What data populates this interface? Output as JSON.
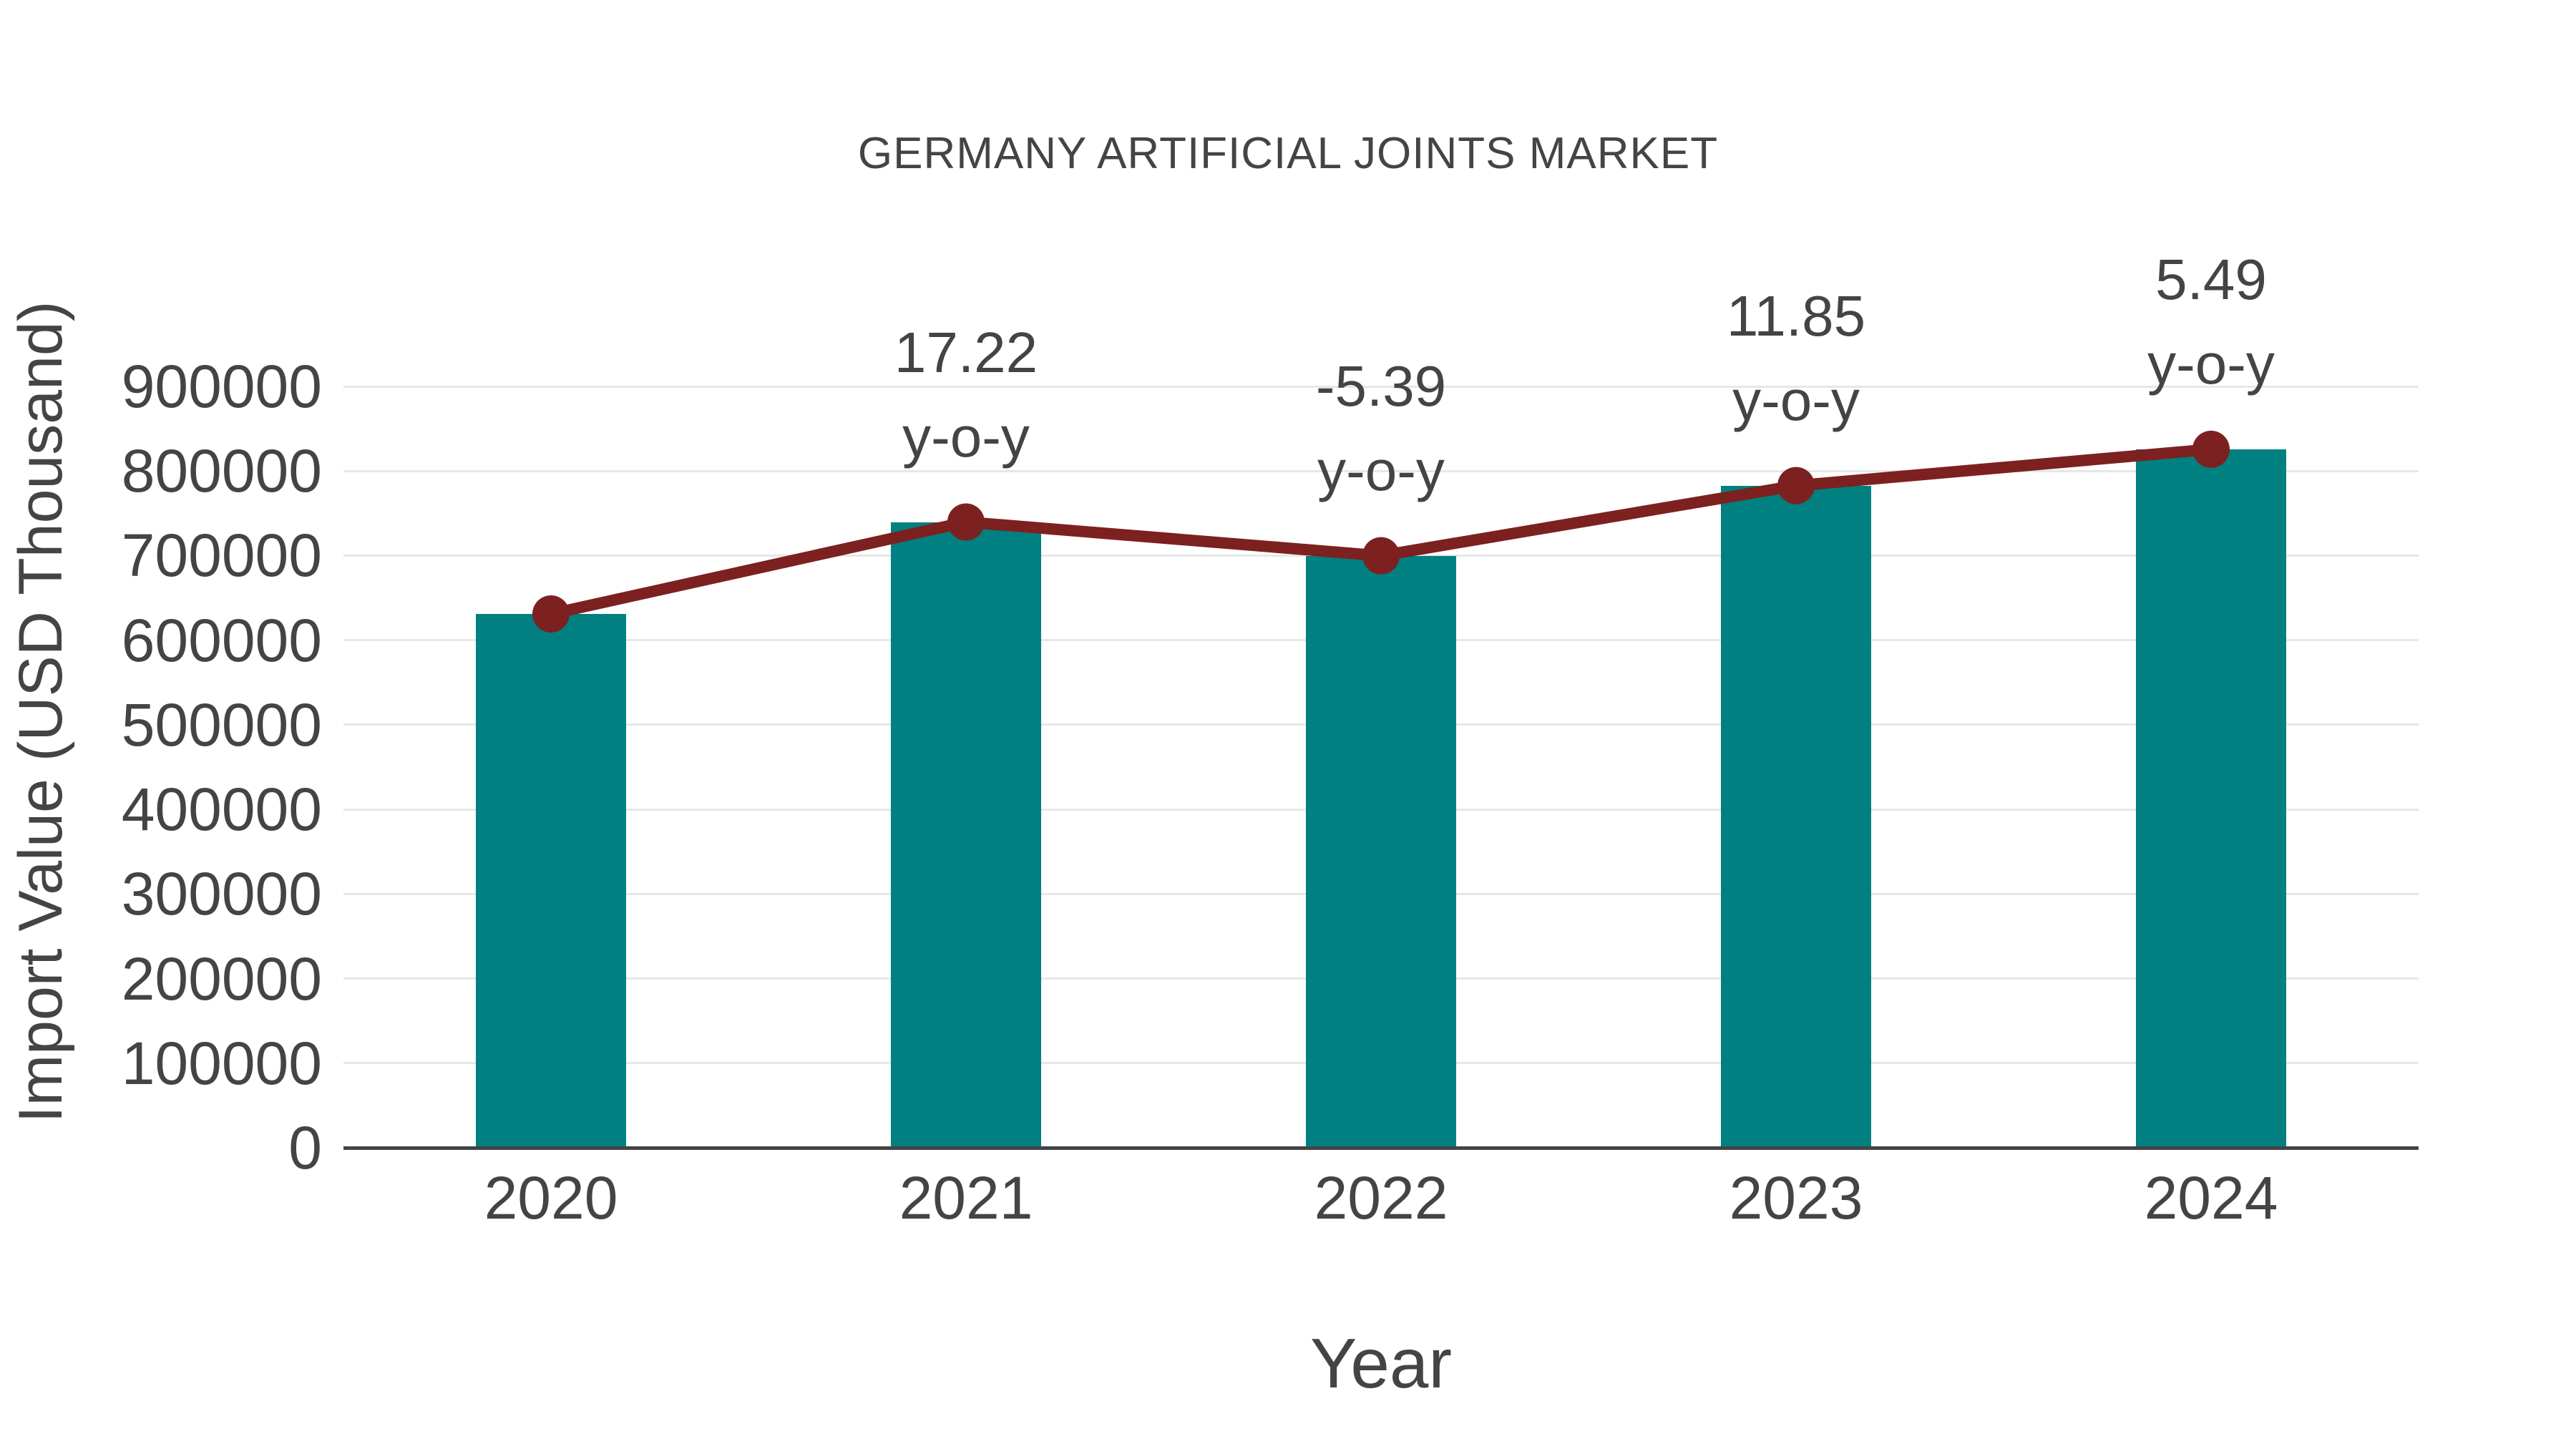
{
  "title": "GERMANY ARTIFICIAL JOINTS MARKET",
  "chart_data": {
    "type": "bar",
    "subtype": "bar-with-line-overlay",
    "title": "GERMANY ARTIFICIAL JOINTS MARKET",
    "xlabel": "Year",
    "ylabel": "Import Value (USD Thousand)",
    "categories": [
      "2020",
      "2021",
      "2022",
      "2023",
      "2024"
    ],
    "series": [
      {
        "name": "Import Value (bars)",
        "type": "bar",
        "values": [
          631000,
          739700,
          699800,
          782700,
          825700
        ]
      },
      {
        "name": "Import Value (line)",
        "type": "line",
        "values": [
          631000,
          739700,
          699800,
          782700,
          825700
        ]
      }
    ],
    "annotations": [
      {
        "category": "2021",
        "value": "17.22",
        "label": "y-o-y"
      },
      {
        "category": "2022",
        "value": "-5.39",
        "label": "y-o-y"
      },
      {
        "category": "2023",
        "value": "11.85",
        "label": "y-o-y"
      },
      {
        "category": "2024",
        "value": "5.49",
        "label": "y-o-y"
      }
    ],
    "ylim": [
      0,
      900000
    ],
    "yticks": [
      0,
      100000,
      200000,
      300000,
      400000,
      500000,
      600000,
      700000,
      800000,
      900000
    ],
    "grid": true,
    "legend": false
  },
  "colors": {
    "bar": "#008080",
    "line": "#7d2020",
    "marker": "#7d2020",
    "text": "#444444",
    "grid": "#e7e7e7",
    "axis": "#444444",
    "background": "#ffffff"
  }
}
